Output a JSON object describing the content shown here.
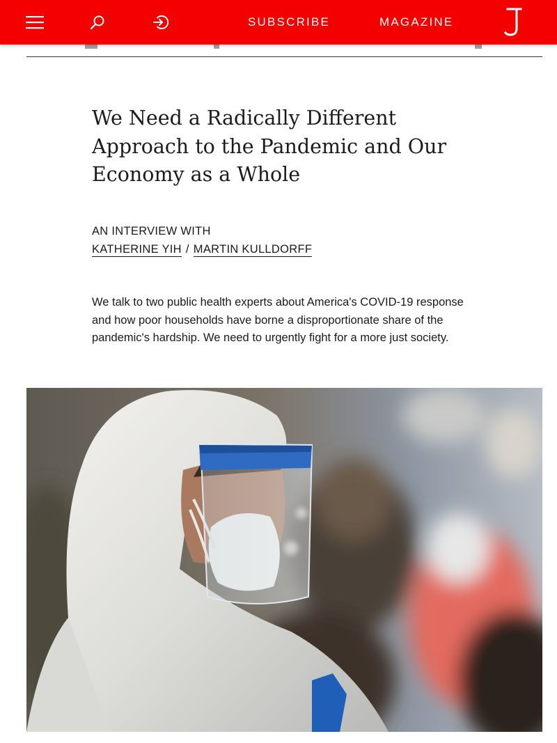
{
  "header": {
    "menu_icon": "hamburger-menu-icon",
    "search_icon": "search-icon",
    "login_icon": "sign-in-icon",
    "subscribe_label": "SUBSCRIBE",
    "magazine_label": "MAGAZINE",
    "logo_letter": "J",
    "brand_color": "#f40000"
  },
  "article": {
    "headline": "We Need a Radically Different Approach to the Pandemic and Our Economy as a Whole",
    "kicker": "AN INTERVIEW WITH",
    "authors": [
      "KATHERINE YIH",
      "MARTIN KULLDORFF"
    ],
    "author_separator": "/",
    "dek": "We talk to two public health experts about America's COVID-19 response and how poor households have borne a disproportionate share of the pandemic's hardship. We need to urgently fight for a more just society."
  },
  "hero_image": {
    "subject": "health worker in white protective suit, N95 mask and face shield"
  }
}
